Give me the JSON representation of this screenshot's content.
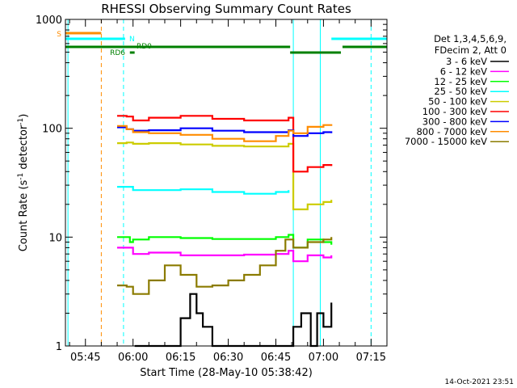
{
  "chart_data": {
    "type": "line",
    "title": "RHESSI Observing Summary Count Rates",
    "xlabel": "Start Time (28-May-10 05:38:42)",
    "ylabel_main": "Count Rate (s",
    "ylabel_sup1": "-1",
    "ylabel_mid": " detector",
    "ylabel_sup2": "-1",
    "ylabel_end": ")",
    "x_scale": "time",
    "x_range": [
      "05:38:42",
      "07:20:00"
    ],
    "x_ticks": [
      "05:45",
      "06:00",
      "06:15",
      "06:30",
      "06:45",
      "07:00",
      "07:15"
    ],
    "y_scale": "log",
    "y_range": [
      1,
      1000
    ],
    "y_ticks": [
      "1",
      "10",
      "100",
      "1000"
    ],
    "legend_header": [
      "Det 1,3,4,5,6,9,",
      "FDecim 2, Att 0"
    ],
    "footer_date": "14-Oct-2021 23:51",
    "flags": {
      "S": {
        "label": "S",
        "color": "#ff8c00",
        "segments": [
          [
            "05:38:42",
            "05:50:00"
          ]
        ]
      },
      "N": {
        "label": "N",
        "color": "#00ffff",
        "segments": [
          [
            "05:38:42",
            "05:57:30"
          ],
          [
            "07:02:30",
            "07:20:00"
          ]
        ]
      },
      "RD0": {
        "label": "RD0",
        "color": "#008000",
        "segments": [
          [
            "05:38:42",
            "06:49:30"
          ],
          [
            "07:06:00",
            "07:20:00"
          ]
        ]
      },
      "RD6": {
        "label": "RD6",
        "color": "#008000",
        "segments": [
          [
            "05:59:00",
            "06:00:30"
          ],
          [
            "06:49:30",
            "07:05:30"
          ]
        ]
      }
    },
    "vertical_markers": [
      {
        "time": "05:50:00",
        "color": "#ff8c00",
        "style": "dashed"
      },
      {
        "time": "05:57:00",
        "color": "#00ffff",
        "style": "dashed"
      },
      {
        "time": "05:39:30",
        "color": "#00ffff",
        "style": "solid"
      },
      {
        "time": "06:50:30",
        "color": "#00ffff",
        "style": "solid"
      },
      {
        "time": "06:59:00",
        "color": "#00ffff",
        "style": "solid"
      },
      {
        "time": "07:15:00",
        "color": "#00ffff",
        "style": "dashed"
      }
    ],
    "series": [
      {
        "name": "3 - 6 keV",
        "color": "#000000",
        "t": [
          "06:00:30",
          "06:10:00",
          "06:15:00",
          "06:18:00",
          "06:20:00",
          "06:22:00",
          "06:25:00",
          "06:30:00",
          "06:40:00",
          "06:48:00",
          "06:50:30",
          "06:53:00",
          "06:56:00",
          "06:58:00",
          "07:00:00",
          "07:02:30"
        ],
        "v": [
          1.0,
          1.0,
          1.8,
          3.0,
          2.0,
          1.5,
          1.0,
          1.0,
          1.0,
          1.0,
          1.5,
          2.0,
          1.0,
          2.0,
          1.5,
          2.5
        ]
      },
      {
        "name": "6 - 12 keV",
        "color": "#ff00ff",
        "t": [
          "05:55:00",
          "06:00:00",
          "06:05:00",
          "06:15:00",
          "06:25:00",
          "06:35:00",
          "06:45:00",
          "06:49:00",
          "06:50:30",
          "06:55:00",
          "07:00:00",
          "07:02:30"
        ],
        "v": [
          8.0,
          7.0,
          7.2,
          6.8,
          6.8,
          6.9,
          7.0,
          7.5,
          6.0,
          6.8,
          6.5,
          6.8
        ]
      },
      {
        "name": "12 - 25 keV",
        "color": "#00ff00",
        "t": [
          "05:55:00",
          "05:59:00",
          "06:00:00",
          "06:05:00",
          "06:15:00",
          "06:25:00",
          "06:35:00",
          "06:45:00",
          "06:49:00",
          "06:50:30",
          "06:55:00",
          "07:00:00",
          "07:02:30"
        ],
        "v": [
          10.0,
          9.0,
          9.5,
          10.0,
          9.8,
          9.6,
          9.6,
          10.0,
          10.5,
          8.0,
          9.5,
          9.0,
          8.5
        ]
      },
      {
        "name": "25 - 50 keV",
        "color": "#00ffff",
        "t": [
          "05:55:00",
          "05:58:00",
          "06:00:00",
          "06:05:00",
          "06:15:00",
          "06:25:00",
          "06:35:00",
          "06:45:00",
          "06:49:00"
        ],
        "v": [
          29.0,
          29.0,
          27.0,
          27.0,
          27.5,
          26.0,
          25.0,
          26.0,
          27.0
        ]
      },
      {
        "name": "50 - 100 keV",
        "color": "#cccc00",
        "t": [
          "05:55:00",
          "05:58:00",
          "06:00:00",
          "06:05:00",
          "06:15:00",
          "06:25:00",
          "06:35:00",
          "06:45:00",
          "06:49:00",
          "06:50:30",
          "06:55:00",
          "07:00:00",
          "07:02:30"
        ],
        "v": [
          73.0,
          74.0,
          72.0,
          73.0,
          71.0,
          69.0,
          68.0,
          68.0,
          72.0,
          18.0,
          20.0,
          21.0,
          22.0
        ]
      },
      {
        "name": "100 - 300 keV",
        "color": "#ff0000",
        "t": [
          "05:55:00",
          "05:58:00",
          "06:00:00",
          "06:05:00",
          "06:15:00",
          "06:25:00",
          "06:35:00",
          "06:45:00",
          "06:49:00",
          "06:50:30",
          "06:55:00",
          "07:00:00",
          "07:02:30"
        ],
        "v": [
          130.0,
          128.0,
          118.0,
          125.0,
          130.0,
          122.0,
          118.0,
          118.0,
          125.0,
          40.0,
          44.0,
          46.0,
          45.0
        ]
      },
      {
        "name": "300 - 800 keV",
        "color": "#0000ff",
        "t": [
          "05:55:00",
          "05:58:00",
          "06:00:00",
          "06:05:00",
          "06:15:00",
          "06:25:00",
          "06:35:00",
          "06:45:00",
          "06:49:00",
          "06:50:30",
          "06:55:00",
          "07:00:00",
          "07:02:30"
        ],
        "v": [
          102.0,
          98.0,
          95.0,
          96.0,
          100.0,
          95.0,
          92.0,
          92.0,
          96.0,
          85.0,
          90.0,
          92.0,
          90.0
        ]
      },
      {
        "name": "800 - 7000 keV",
        "color": "#ff8c00",
        "t": [
          "05:55:00",
          "05:58:00",
          "06:00:00",
          "06:05:00",
          "06:15:00",
          "06:25:00",
          "06:35:00",
          "06:45:00",
          "06:49:00",
          "06:50:30",
          "06:55:00",
          "07:00:00",
          "07:02:30"
        ],
        "v": [
          105.0,
          98.0,
          92.0,
          90.0,
          87.0,
          80.0,
          76.0,
          85.0,
          95.0,
          90.0,
          103.0,
          107.0,
          105.0
        ]
      },
      {
        "name": "7000 - 15000 keV",
        "color": "#8b7b00",
        "t": [
          "05:55:00",
          "05:58:00",
          "06:00:00",
          "06:05:00",
          "06:10:00",
          "06:15:00",
          "06:20:00",
          "06:25:00",
          "06:30:00",
          "06:35:00",
          "06:40:00",
          "06:45:00",
          "06:48:00",
          "06:50:30",
          "06:55:00",
          "07:00:00",
          "07:02:30"
        ],
        "v": [
          3.6,
          3.5,
          3.0,
          4.0,
          5.5,
          4.5,
          3.5,
          3.6,
          4.0,
          4.5,
          5.5,
          7.5,
          9.5,
          8.0,
          9.0,
          9.5,
          10.0
        ]
      }
    ]
  }
}
